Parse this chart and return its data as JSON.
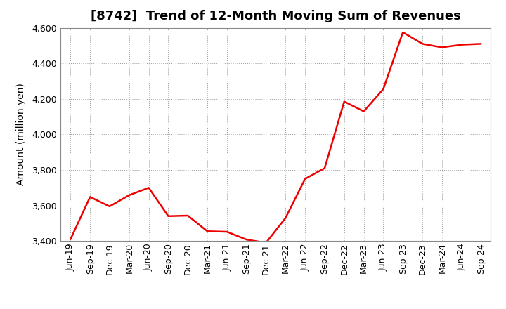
{
  "title": "[8742]  Trend of 12-Month Moving Sum of Revenues",
  "ylabel": "Amount (million yen)",
  "line_color": "#EE0000",
  "background_color": "#FFFFFF",
  "plot_bg_color": "#FFFFFF",
  "grid_color": "#999999",
  "ylim": [
    3400,
    4600
  ],
  "yticks": [
    3400,
    3600,
    3800,
    4000,
    4200,
    4400,
    4600
  ],
  "x_labels": [
    "Jun-19",
    "Sep-19",
    "Dec-19",
    "Mar-20",
    "Jun-20",
    "Sep-20",
    "Dec-20",
    "Mar-21",
    "Jun-21",
    "Sep-21",
    "Dec-21",
    "Mar-22",
    "Jun-22",
    "Sep-22",
    "Dec-22",
    "Mar-23",
    "Jun-23",
    "Sep-23",
    "Dec-23",
    "Mar-24",
    "Jun-24",
    "Sep-24"
  ],
  "values": [
    3410,
    3648,
    3595,
    3658,
    3700,
    3540,
    3543,
    3455,
    3452,
    3408,
    3390,
    3530,
    3750,
    3810,
    4185,
    4130,
    4255,
    4575,
    4510,
    4490,
    4505,
    4510
  ],
  "title_fontsize": 13,
  "ylabel_fontsize": 10,
  "tick_fontsize": 9,
  "linewidth": 1.8
}
